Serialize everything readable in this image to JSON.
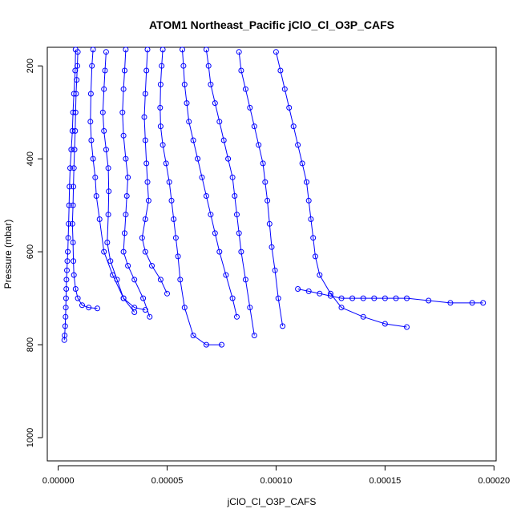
{
  "chart_data": {
    "type": "scatter",
    "title": "ATOM1 Northeast_Pacific jClO_Cl_O3P_CAFS",
    "xlabel": "jClO_Cl_O3P_CAFS",
    "ylabel": "Pressure (mbar)",
    "xlim": [
      -5e-06,
      0.000201
    ],
    "ylim": [
      1050,
      160
    ],
    "y_reversed": true,
    "x_ticks": [
      "0.00000",
      "0.00005",
      "0.00010",
      "0.00015",
      "0.00020"
    ],
    "x_tick_values": [
      0,
      5e-05,
      0.0001,
      0.00015,
      0.0002
    ],
    "y_ticks": [
      "200",
      "400",
      "600",
      "800",
      "1000"
    ],
    "y_tick_values": [
      200,
      400,
      600,
      800,
      1000
    ],
    "marker": "open-circle",
    "connected": true,
    "grid": false,
    "series_color": "#0000ff",
    "series": [
      {
        "x": [
          8e-06,
          7.8e-06,
          7.2e-06,
          6.8e-06,
          6.5e-06,
          6e-06,
          5.5e-06,
          5.2e-06,
          5e-06,
          4.8e-06,
          4.6e-06,
          4.4e-06,
          4.2e-06,
          4e-06,
          3.8e-06,
          3.7e-06,
          3.6e-06,
          3.5e-06,
          3.4e-06,
          3.2e-06,
          3e-06,
          2.8e-06
        ],
        "y": [
          165,
          210,
          260,
          300,
          340,
          380,
          420,
          460,
          500,
          540,
          570,
          600,
          620,
          640,
          660,
          680,
          700,
          720,
          740,
          760,
          780,
          790
        ]
      },
      {
        "x": [
          9e-06,
          8.8e-06,
          8.5e-06,
          8.2e-06,
          8e-06,
          7.8e-06,
          7.5e-06,
          7.2e-06,
          7e-06,
          6.8e-06,
          6.5e-06,
          6.8e-06,
          7e-06,
          7.2e-06,
          8e-06,
          9e-06,
          1.1e-05,
          1.4e-05,
          1.8e-05
        ],
        "y": [
          170,
          200,
          230,
          260,
          300,
          340,
          380,
          420,
          460,
          500,
          540,
          580,
          620,
          650,
          680,
          700,
          715,
          720,
          722
        ]
      },
      {
        "x": [
          1.6e-05,
          1.55e-05,
          1.5e-05,
          1.48e-05,
          1.52e-05,
          1.6e-05,
          1.7e-05,
          1.75e-05,
          1.9e-05,
          2.1e-05,
          2.5e-05,
          3e-05,
          3.5e-05,
          4e-05
        ],
        "y": [
          165,
          200,
          260,
          320,
          360,
          400,
          440,
          480,
          530,
          600,
          650,
          700,
          720,
          725
        ]
      },
      {
        "x": [
          2.2e-05,
          2.15e-05,
          2.1e-05,
          2.05e-05,
          2.1e-05,
          2.2e-05,
          2.3e-05,
          2.32e-05,
          2.3e-05,
          2.25e-05,
          2.4e-05,
          2.7e-05,
          3e-05,
          3.5e-05
        ],
        "y": [
          170,
          210,
          250,
          300,
          340,
          380,
          420,
          470,
          520,
          580,
          620,
          660,
          700,
          730
        ]
      },
      {
        "x": [
          3.1e-05,
          3.05e-05,
          3e-05,
          2.95e-05,
          3e-05,
          3.1e-05,
          3.2e-05,
          3.15e-05,
          3.1e-05,
          3.05e-05,
          3e-05,
          3.2e-05,
          3.5e-05,
          3.9e-05,
          4.2e-05
        ],
        "y": [
          165,
          210,
          250,
          300,
          350,
          400,
          440,
          480,
          520,
          560,
          600,
          630,
          660,
          700,
          740
        ]
      },
      {
        "x": [
          4.1e-05,
          4.05e-05,
          4e-05,
          3.95e-05,
          4e-05,
          4.05e-05,
          4.1e-05,
          4.15e-05,
          4e-05,
          3.85e-05,
          4e-05,
          4.3e-05,
          4.7e-05,
          5e-05
        ],
        "y": [
          165,
          210,
          260,
          310,
          360,
          410,
          450,
          490,
          530,
          570,
          600,
          630,
          660,
          690
        ]
      },
      {
        "x": [
          4.8e-05,
          4.75e-05,
          4.7e-05,
          4.68e-05,
          4.7e-05,
          4.8e-05,
          4.95e-05,
          5.1e-05,
          5.2e-05,
          5.3e-05,
          5.4e-05,
          5.5e-05,
          5.6e-05,
          5.8e-05,
          6.2e-05,
          6.8e-05,
          7.5e-05
        ],
        "y": [
          165,
          200,
          240,
          290,
          330,
          370,
          410,
          450,
          490,
          530,
          570,
          610,
          660,
          720,
          780,
          800,
          800
        ]
      },
      {
        "x": [
          5.7e-05,
          5.75e-05,
          5.8e-05,
          5.9e-05,
          6e-05,
          6.2e-05,
          6.4e-05,
          6.6e-05,
          6.8e-05,
          7e-05,
          7.2e-05,
          7.4e-05,
          7.7e-05,
          8e-05,
          8.2e-05
        ],
        "y": [
          165,
          200,
          240,
          280,
          320,
          360,
          400,
          440,
          480,
          520,
          560,
          600,
          650,
          700,
          740
        ]
      },
      {
        "x": [
          6.8e-05,
          6.9e-05,
          7e-05,
          7.2e-05,
          7.4e-05,
          7.6e-05,
          7.8e-05,
          8e-05,
          8.1e-05,
          8.2e-05,
          8.3e-05,
          8.4e-05,
          8.6e-05,
          8.8e-05,
          9e-05
        ],
        "y": [
          165,
          200,
          240,
          280,
          320,
          360,
          400,
          440,
          480,
          520,
          560,
          600,
          660,
          720,
          780
        ]
      },
      {
        "x": [
          8.3e-05,
          8.4e-05,
          8.6e-05,
          8.8e-05,
          9e-05,
          9.2e-05,
          9.4e-05,
          9.5e-05,
          9.6e-05,
          9.7e-05,
          9.8e-05,
          9.95e-05,
          0.000101,
          0.000103
        ],
        "y": [
          170,
          210,
          250,
          290,
          330,
          370,
          410,
          450,
          490,
          540,
          590,
          640,
          700,
          760
        ]
      },
      {
        "x": [
          0.0001,
          0.000102,
          0.000104,
          0.000106,
          0.000108,
          0.00011,
          0.000112,
          0.000114,
          0.000115,
          0.000116,
          0.000117,
          0.000118,
          0.00012,
          0.000125,
          0.00013,
          0.00014,
          0.00015,
          0.00016
        ],
        "y": [
          170,
          210,
          250,
          290,
          330,
          370,
          410,
          450,
          490,
          530,
          570,
          610,
          650,
          690,
          720,
          740,
          755,
          762
        ]
      },
      {
        "x": [
          0.00011,
          0.000115,
          0.00012,
          0.000125,
          0.00013,
          0.000135,
          0.00014,
          0.000145,
          0.00015,
          0.000155,
          0.00016,
          0.00017,
          0.00018,
          0.00019,
          0.000195
        ],
        "y": [
          680,
          685,
          690,
          695,
          700,
          700,
          700,
          700,
          700,
          700,
          700,
          705,
          710,
          710,
          710
        ]
      }
    ]
  }
}
